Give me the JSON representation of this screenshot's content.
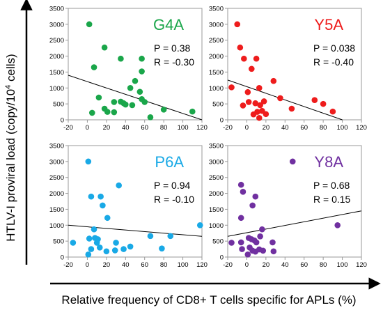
{
  "figure": {
    "ylabel_main": "HTLV-I proviral load (copy/10",
    "ylabel_sup": "4",
    "ylabel_tail": " cells)",
    "xlabel": "Relative frequency of CD8+ T cells specific for APLs (%)"
  },
  "chart_data": [
    {
      "type": "scatter",
      "title": "G4A",
      "color": "#1aa64a",
      "stats": {
        "p": "P = 0.38",
        "r": "R = -0.30"
      },
      "xlim": [
        -20,
        120
      ],
      "ylim": [
        0,
        3500
      ],
      "xticks": [
        "-20",
        "0",
        "20",
        "40",
        "60",
        "80",
        "100",
        "120"
      ],
      "yticks": [
        "0",
        "500",
        "1000",
        "1500",
        "2000",
        "2500",
        "3000",
        "3500"
      ],
      "trendline": {
        "x": [
          -20,
          120
        ],
        "y": [
          1400,
          0
        ]
      },
      "points": [
        {
          "x": 2,
          "y": 3000
        },
        {
          "x": 7,
          "y": 1650
        },
        {
          "x": 18,
          "y": 2270
        },
        {
          "x": 35,
          "y": 1920
        },
        {
          "x": 57,
          "y": 1920
        },
        {
          "x": 57,
          "y": 1520
        },
        {
          "x": 50,
          "y": 1220
        },
        {
          "x": 45,
          "y": 1000
        },
        {
          "x": 55,
          "y": 880
        },
        {
          "x": 12,
          "y": 700
        },
        {
          "x": 28,
          "y": 560
        },
        {
          "x": 35,
          "y": 570
        },
        {
          "x": 38,
          "y": 520
        },
        {
          "x": 40,
          "y": 480
        },
        {
          "x": 47,
          "y": 460
        },
        {
          "x": 57,
          "y": 650
        },
        {
          "x": 60,
          "y": 560
        },
        {
          "x": 18,
          "y": 350
        },
        {
          "x": 21,
          "y": 250
        },
        {
          "x": 28,
          "y": 240
        },
        {
          "x": 5,
          "y": 220
        },
        {
          "x": 66,
          "y": 80
        },
        {
          "x": 80,
          "y": 320
        },
        {
          "x": 110,
          "y": 260
        }
      ]
    },
    {
      "type": "scatter",
      "title": "Y5A",
      "color": "#ee1c1c",
      "stats": {
        "p": "P = 0.038",
        "r": "R = -0.40"
      },
      "xlim": [
        -20,
        120
      ],
      "ylim": [
        0,
        3500
      ],
      "xticks": [
        "-20",
        "0",
        "20",
        "40",
        "60",
        "80",
        "100",
        "120"
      ],
      "yticks": [
        "0",
        "500",
        "1000",
        "1500",
        "2000",
        "2500",
        "3000",
        "3500"
      ],
      "trendline": {
        "x": [
          -20,
          100
        ],
        "y": [
          1250,
          0
        ]
      },
      "points": [
        {
          "x": -10,
          "y": 3000
        },
        {
          "x": -7,
          "y": 2270
        },
        {
          "x": -3,
          "y": 1920
        },
        {
          "x": 10,
          "y": 1920
        },
        {
          "x": 5,
          "y": 1600
        },
        {
          "x": -16,
          "y": 1020
        },
        {
          "x": 1,
          "y": 870
        },
        {
          "x": 13,
          "y": 1000
        },
        {
          "x": 28,
          "y": 1220
        },
        {
          "x": 35,
          "y": 680
        },
        {
          "x": 71,
          "y": 620
        },
        {
          "x": 80,
          "y": 500
        },
        {
          "x": 90,
          "y": 260
        },
        {
          "x": 47,
          "y": 350
        },
        {
          "x": 2,
          "y": 560
        },
        {
          "x": 9,
          "y": 520
        },
        {
          "x": 14,
          "y": 460
        },
        {
          "x": 18,
          "y": 580
        },
        {
          "x": 16,
          "y": 280
        },
        {
          "x": 11,
          "y": 250
        },
        {
          "x": 7,
          "y": 170
        },
        {
          "x": 20,
          "y": 180
        },
        {
          "x": -4,
          "y": 450
        },
        {
          "x": 13,
          "y": 60
        }
      ]
    },
    {
      "type": "scatter",
      "title": "P6A",
      "color": "#19a9e6",
      "stats": {
        "p": "P = 0.94",
        "r": "R = -0.10"
      },
      "xlim": [
        -20,
        120
      ],
      "ylim": [
        0,
        3500
      ],
      "xticks": [
        "-20",
        "0",
        "20",
        "40",
        "60",
        "80",
        "100",
        "120"
      ],
      "yticks": [
        "0",
        "500",
        "1000",
        "1500",
        "2000",
        "2500",
        "3000",
        "3500"
      ],
      "trendline": {
        "x": [
          -20,
          120
        ],
        "y": [
          1000,
          650
        ]
      },
      "points": [
        {
          "x": 1,
          "y": 3000
        },
        {
          "x": 4,
          "y": 1900
        },
        {
          "x": 14,
          "y": 1900
        },
        {
          "x": 33,
          "y": 2250
        },
        {
          "x": 16,
          "y": 1620
        },
        {
          "x": 21,
          "y": 1230
        },
        {
          "x": 118,
          "y": 1000
        },
        {
          "x": 7,
          "y": 870
        },
        {
          "x": 2,
          "y": 580
        },
        {
          "x": 8,
          "y": 600
        },
        {
          "x": 11,
          "y": 560
        },
        {
          "x": -15,
          "y": 450
        },
        {
          "x": 10,
          "y": 450
        },
        {
          "x": 30,
          "y": 450
        },
        {
          "x": 45,
          "y": 330
        },
        {
          "x": 66,
          "y": 660
        },
        {
          "x": 87,
          "y": 660
        },
        {
          "x": 4,
          "y": 250
        },
        {
          "x": 13,
          "y": 300
        },
        {
          "x": 20,
          "y": 180
        },
        {
          "x": 29,
          "y": 210
        },
        {
          "x": 1,
          "y": 80
        },
        {
          "x": 38,
          "y": 250
        },
        {
          "x": 78,
          "y": 270
        }
      ]
    },
    {
      "type": "scatter",
      "title": "Y8A",
      "color": "#7030a0",
      "stats": {
        "p": "P = 0.68",
        "r": "R = 0.15"
      },
      "xlim": [
        -20,
        120
      ],
      "ylim": [
        0,
        3500
      ],
      "xticks": [
        "-20",
        "0",
        "20",
        "40",
        "60",
        "80",
        "100",
        "120"
      ],
      "yticks": [
        "0",
        "500",
        "1000",
        "1500",
        "2000",
        "2500",
        "3000",
        "3500"
      ],
      "trendline": {
        "x": [
          -20,
          120
        ],
        "y": [
          650,
          1450
        ]
      },
      "points": [
        {
          "x": -6,
          "y": 2270
        },
        {
          "x": -4,
          "y": 2050
        },
        {
          "x": 9,
          "y": 1900
        },
        {
          "x": 6,
          "y": 1620
        },
        {
          "x": 48,
          "y": 3000
        },
        {
          "x": -6,
          "y": 1230
        },
        {
          "x": 95,
          "y": 1000
        },
        {
          "x": 16,
          "y": 870
        },
        {
          "x": -16,
          "y": 450
        },
        {
          "x": -6,
          "y": 460
        },
        {
          "x": 2,
          "y": 600
        },
        {
          "x": 5,
          "y": 560
        },
        {
          "x": 8,
          "y": 520
        },
        {
          "x": 10,
          "y": 460
        },
        {
          "x": 27,
          "y": 460
        },
        {
          "x": 14,
          "y": 650
        },
        {
          "x": -5,
          "y": 250
        },
        {
          "x": 3,
          "y": 300
        },
        {
          "x": 6,
          "y": 200
        },
        {
          "x": 9,
          "y": 170
        },
        {
          "x": 13,
          "y": 240
        },
        {
          "x": 17,
          "y": 200
        },
        {
          "x": 28,
          "y": 180
        },
        {
          "x": 1,
          "y": 80
        }
      ]
    }
  ]
}
